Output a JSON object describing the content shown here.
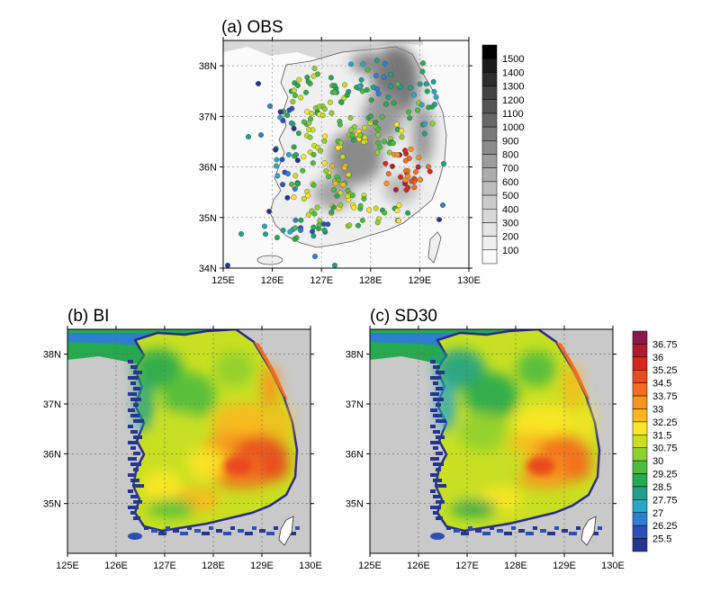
{
  "panels": [
    {
      "id": "obs",
      "title": "(a) OBS",
      "lon_ticks": [
        "125E",
        "126E",
        "127E",
        "128E",
        "129E",
        "130E"
      ],
      "lat_ticks": [
        "38N",
        "37N",
        "36N",
        "35N",
        "34N"
      ],
      "lon_range": [
        125,
        130
      ],
      "lat_range": [
        34,
        38.5
      ]
    },
    {
      "id": "bi",
      "title": "(b) BI",
      "lon_ticks": [
        "125E",
        "126E",
        "127E",
        "128E",
        "129E",
        "130E"
      ],
      "lat_ticks": [
        "38N",
        "37N",
        "36N",
        "35N"
      ],
      "lon_range": [
        125,
        130
      ],
      "lat_range": [
        34,
        38.5
      ]
    },
    {
      "id": "sd30",
      "title": "(c) SD30",
      "lon_ticks": [
        "125E",
        "126E",
        "127E",
        "128E",
        "129E",
        "130E"
      ],
      "lat_ticks": [
        "38N",
        "37N",
        "36N",
        "35N"
      ],
      "lon_range": [
        125,
        130
      ],
      "lat_range": [
        34,
        38.5
      ]
    }
  ],
  "elevation_colorbar": {
    "labels": [
      "1500",
      "1400",
      "1300",
      "1200",
      "1100",
      "1000",
      "900",
      "800",
      "700",
      "600",
      "500",
      "400",
      "300",
      "200",
      "100"
    ],
    "colors": [
      "#000000",
      "#1a1a1a",
      "#2e2e2e",
      "#424242",
      "#555555",
      "#686868",
      "#7a7a7a",
      "#8c8c8c",
      "#9d9d9d",
      "#adadad",
      "#bdbdbd",
      "#cbcbcb",
      "#d8d8d8",
      "#e4e4e4",
      "#efefef",
      "#fbfbfb"
    ]
  },
  "temperature_colorbar": {
    "labels": [
      "36.75",
      "36",
      "35.25",
      "34.5",
      "33.75",
      "33",
      "32.25",
      "31.5",
      "30.75",
      "30",
      "29.25",
      "28.5",
      "27.75",
      "27",
      "26.25",
      "25.5"
    ],
    "colors": [
      "#8b1a4a",
      "#b01c2e",
      "#d7261e",
      "#ea4a1e",
      "#f46d1c",
      "#f7941d",
      "#fbb81e",
      "#fde725",
      "#c8e021",
      "#8fd02f",
      "#4cbd3f",
      "#26a94f",
      "#1fa187",
      "#29a6c8",
      "#2f7fd0",
      "#2c4fb8",
      "#273591"
    ]
  },
  "map_colors": {
    "sea": "#c9c9c9",
    "land_light": "#f2f2f2",
    "coast": "#555555"
  }
}
